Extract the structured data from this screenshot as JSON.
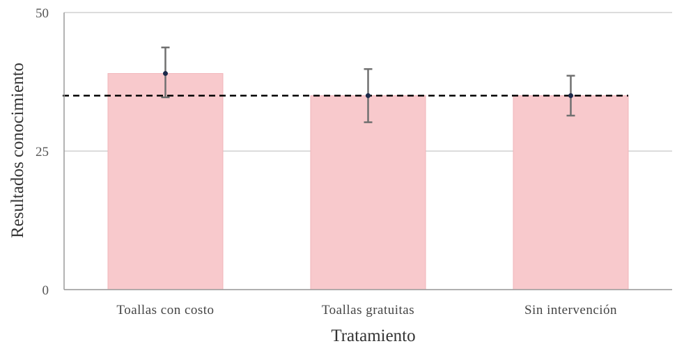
{
  "chart_data": {
    "type": "bar",
    "categories": [
      "Toallas con costo",
      "Toallas gratuitas",
      "Sin intervención"
    ],
    "values": [
      39,
      35,
      35
    ],
    "error_low": [
      34.7,
      30.2,
      31.4
    ],
    "error_high": [
      43.7,
      39.8,
      38.6
    ],
    "reference_line": 35,
    "title": "",
    "xlabel": "Tratamiento",
    "ylabel": "Resultados conocimiento",
    "ylim": [
      0,
      50
    ],
    "yticks": [
      "0",
      "25",
      "50"
    ],
    "grid": true,
    "legend": "none",
    "colors": {
      "bar": "#f8c9cc",
      "bar_edge": "#f1b5ba",
      "grid": "#c8c8c8",
      "axis": "#9a9a9a",
      "error_bar": "#707070",
      "point": "#1c2a4a",
      "reference_line": "#000000"
    }
  }
}
